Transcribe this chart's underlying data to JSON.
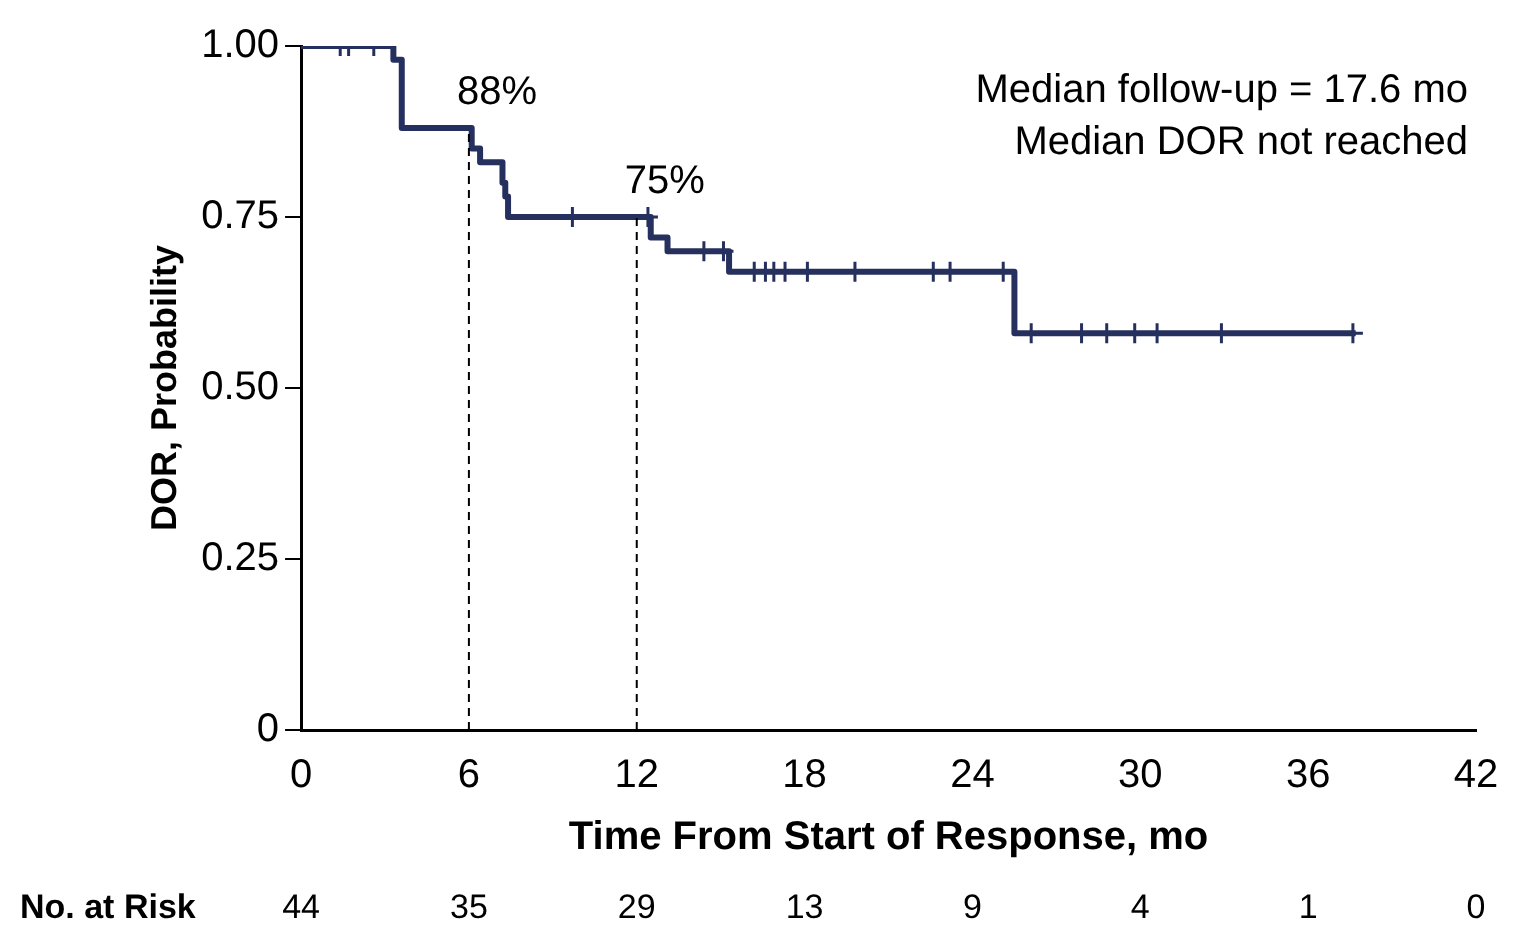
{
  "chart_data": {
    "type": "step",
    "xlabel": "Time From Start of Response, mo",
    "ylabel": "DOR, Probability",
    "xlim": [
      0,
      42
    ],
    "xticks": [
      0,
      6,
      12,
      18,
      24,
      30,
      36,
      42
    ],
    "ylim": [
      0,
      1
    ],
    "yticks": [
      {
        "value": 0,
        "label": "0"
      },
      {
        "value": 0.25,
        "label": "0.25"
      },
      {
        "value": 0.5,
        "label": "0.50"
      },
      {
        "value": 0.75,
        "label": "0.75"
      },
      {
        "value": 1,
        "label": "1.00"
      }
    ],
    "grid": false,
    "legend": false,
    "series": [
      {
        "type": "step",
        "color": "#26305e",
        "x": [
          0,
          3.3,
          3.6,
          6.1,
          6.4,
          7.2,
          7.3,
          7.4,
          12.5,
          13.1,
          15.3,
          25.5,
          37.7
        ],
        "values": [
          1,
          0.98,
          0.88,
          0.85,
          0.83,
          0.8,
          0.78,
          0.75,
          0.72,
          0.7,
          0.67,
          0.58,
          0.58
        ]
      },
      {
        "type": "scatter",
        "color": "#26305e",
        "marker": "cross",
        "x": [
          1.4,
          1.7,
          2.6,
          9.7,
          12.4,
          14.4,
          15.1,
          16.2,
          16.6,
          16.9,
          17.3,
          18.1,
          19.8,
          22.6,
          23.2,
          25.1,
          26.1,
          27.9,
          28.8,
          29.8,
          30.6,
          32.9,
          37.6
        ],
        "values": [
          1,
          1,
          1,
          0.75,
          0.75,
          0.7,
          0.7,
          0.67,
          0.67,
          0.67,
          0.67,
          0.67,
          0.67,
          0.67,
          0.67,
          0.67,
          0.58,
          0.58,
          0.58,
          0.58,
          0.58,
          0.58,
          0.58
        ]
      }
    ],
    "ref_lines": [
      {
        "axis": "x",
        "value": 6,
        "color": "#000000",
        "line_style": "dashed"
      },
      {
        "axis": "x",
        "value": 12,
        "color": "#000000",
        "line_style": "dashed"
      }
    ],
    "annotations": [
      {
        "text": "88%",
        "x": 6,
        "y": 0.88
      },
      {
        "text": "75%",
        "x": 12,
        "y": 0.75
      },
      "Median follow-up = 17.6 mo",
      "Median DOR not reached",
      "No. at Risk",
      "44",
      "35",
      "29",
      "13",
      "9",
      "4",
      "1",
      "0"
    ]
  }
}
